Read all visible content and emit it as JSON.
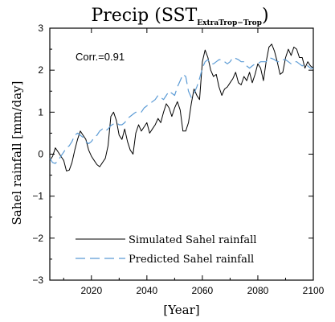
{
  "chart_data": {
    "type": "line",
    "title": "Precip (SST",
    "title_subscript": "ExtraTrop−Trop",
    "title_close": ")",
    "xlabel": "[Year]",
    "ylabel": "Sahel rainfall [mm/day]",
    "xlim": [
      2005,
      2100
    ],
    "ylim": [
      -3,
      3
    ],
    "xticks": [
      2020,
      2040,
      2060,
      2080,
      2100
    ],
    "yticks": [
      -3,
      -2,
      -1,
      0,
      1,
      2,
      3
    ],
    "ytick_labels": [
      "−3",
      "−2",
      "−1",
      "0",
      "1",
      "2",
      "3"
    ],
    "grid": false,
    "legend_position": "bottom-left",
    "annotation": "Corr.=0.91",
    "series": [
      {
        "name": "Simulated Sahel rainfall",
        "color": "#000000",
        "style": "solid",
        "x": [
          2005,
          2006,
          2007,
          2008,
          2009,
          2010,
          2011,
          2012,
          2013,
          2014,
          2015,
          2016,
          2017,
          2018,
          2019,
          2020,
          2021,
          2022,
          2023,
          2024,
          2025,
          2026,
          2027,
          2028,
          2029,
          2030,
          2031,
          2032,
          2033,
          2034,
          2035,
          2036,
          2037,
          2038,
          2039,
          2040,
          2041,
          2042,
          2043,
          2044,
          2045,
          2046,
          2047,
          2048,
          2049,
          2050,
          2051,
          2052,
          2053,
          2054,
          2055,
          2056,
          2057,
          2058,
          2059,
          2060,
          2061,
          2062,
          2063,
          2064,
          2065,
          2066,
          2067,
          2068,
          2069,
          2070,
          2071,
          2072,
          2073,
          2074,
          2075,
          2076,
          2077,
          2078,
          2079,
          2080,
          2081,
          2082,
          2083,
          2084,
          2085,
          2086,
          2087,
          2088,
          2089,
          2090,
          2091,
          2092,
          2093,
          2094,
          2095,
          2096,
          2097,
          2098,
          2099,
          2100
        ],
        "y": [
          -0.15,
          -0.05,
          0.15,
          0.05,
          -0.05,
          -0.15,
          -0.4,
          -0.38,
          -0.2,
          0.1,
          0.35,
          0.55,
          0.45,
          0.35,
          0.1,
          -0.05,
          -0.15,
          -0.25,
          -0.3,
          -0.2,
          -0.1,
          0.2,
          0.9,
          1.0,
          0.8,
          0.45,
          0.35,
          0.6,
          0.3,
          0.1,
          0.0,
          0.5,
          0.7,
          0.55,
          0.65,
          0.75,
          0.5,
          0.6,
          0.7,
          0.85,
          0.75,
          1.0,
          1.2,
          1.1,
          0.9,
          1.1,
          1.25,
          1.05,
          0.55,
          0.55,
          0.75,
          1.2,
          1.55,
          1.4,
          1.3,
          2.2,
          2.48,
          2.3,
          2.0,
          1.85,
          1.9,
          1.6,
          1.4,
          1.55,
          1.6,
          1.7,
          1.8,
          1.95,
          1.7,
          1.65,
          1.85,
          1.75,
          1.95,
          1.7,
          1.9,
          2.15,
          2.05,
          1.75,
          2.2,
          2.55,
          2.62,
          2.45,
          2.2,
          1.9,
          1.95,
          2.3,
          2.5,
          2.35,
          2.55,
          2.5,
          2.3,
          2.3,
          2.05,
          2.2,
          2.1,
          2.05
        ]
      },
      {
        "name": "Predicted Sahel rainfall",
        "color": "#5b9bd5",
        "style": "dashed",
        "x": [
          2005,
          2006,
          2007,
          2008,
          2009,
          2010,
          2011,
          2012,
          2013,
          2014,
          2015,
          2016,
          2017,
          2018,
          2019,
          2020,
          2021,
          2022,
          2023,
          2024,
          2025,
          2026,
          2027,
          2028,
          2029,
          2030,
          2031,
          2032,
          2033,
          2034,
          2035,
          2036,
          2037,
          2038,
          2039,
          2040,
          2041,
          2042,
          2043,
          2044,
          2045,
          2046,
          2047,
          2048,
          2049,
          2050,
          2051,
          2052,
          2053,
          2054,
          2055,
          2056,
          2057,
          2058,
          2059,
          2060,
          2061,
          2062,
          2063,
          2064,
          2065,
          2066,
          2067,
          2068,
          2069,
          2070,
          2071,
          2072,
          2073,
          2074,
          2075,
          2076,
          2077,
          2078,
          2079,
          2080,
          2081,
          2082,
          2083,
          2084,
          2085,
          2086,
          2087,
          2088,
          2089,
          2090,
          2091,
          2092,
          2093,
          2094,
          2095,
          2096,
          2097,
          2098,
          2099,
          2100
        ],
        "y": [
          -0.1,
          -0.2,
          -0.22,
          -0.15,
          -0.05,
          0.05,
          0.15,
          0.2,
          0.3,
          0.45,
          0.5,
          0.45,
          0.4,
          0.3,
          0.25,
          0.3,
          0.4,
          0.45,
          0.55,
          0.6,
          0.55,
          0.6,
          0.68,
          0.72,
          0.75,
          0.7,
          0.7,
          0.75,
          0.85,
          0.9,
          0.95,
          1.0,
          0.98,
          1.0,
          1.1,
          1.15,
          1.2,
          1.25,
          1.3,
          1.4,
          1.35,
          1.3,
          1.4,
          1.5,
          1.45,
          1.4,
          1.6,
          1.75,
          1.9,
          1.85,
          1.5,
          1.35,
          1.45,
          1.6,
          1.8,
          2.05,
          2.2,
          2.25,
          2.15,
          2.15,
          2.2,
          2.25,
          2.25,
          2.2,
          2.15,
          2.2,
          2.3,
          2.28,
          2.25,
          2.2,
          2.2,
          2.1,
          2.05,
          2.1,
          2.15,
          2.15,
          2.2,
          2.2,
          2.2,
          2.3,
          2.28,
          2.25,
          2.2,
          2.2,
          2.25,
          2.25,
          2.2,
          2.15,
          2.2,
          2.2,
          2.15,
          2.1,
          2.15,
          2.1,
          2.05,
          2.05
        ]
      }
    ]
  }
}
